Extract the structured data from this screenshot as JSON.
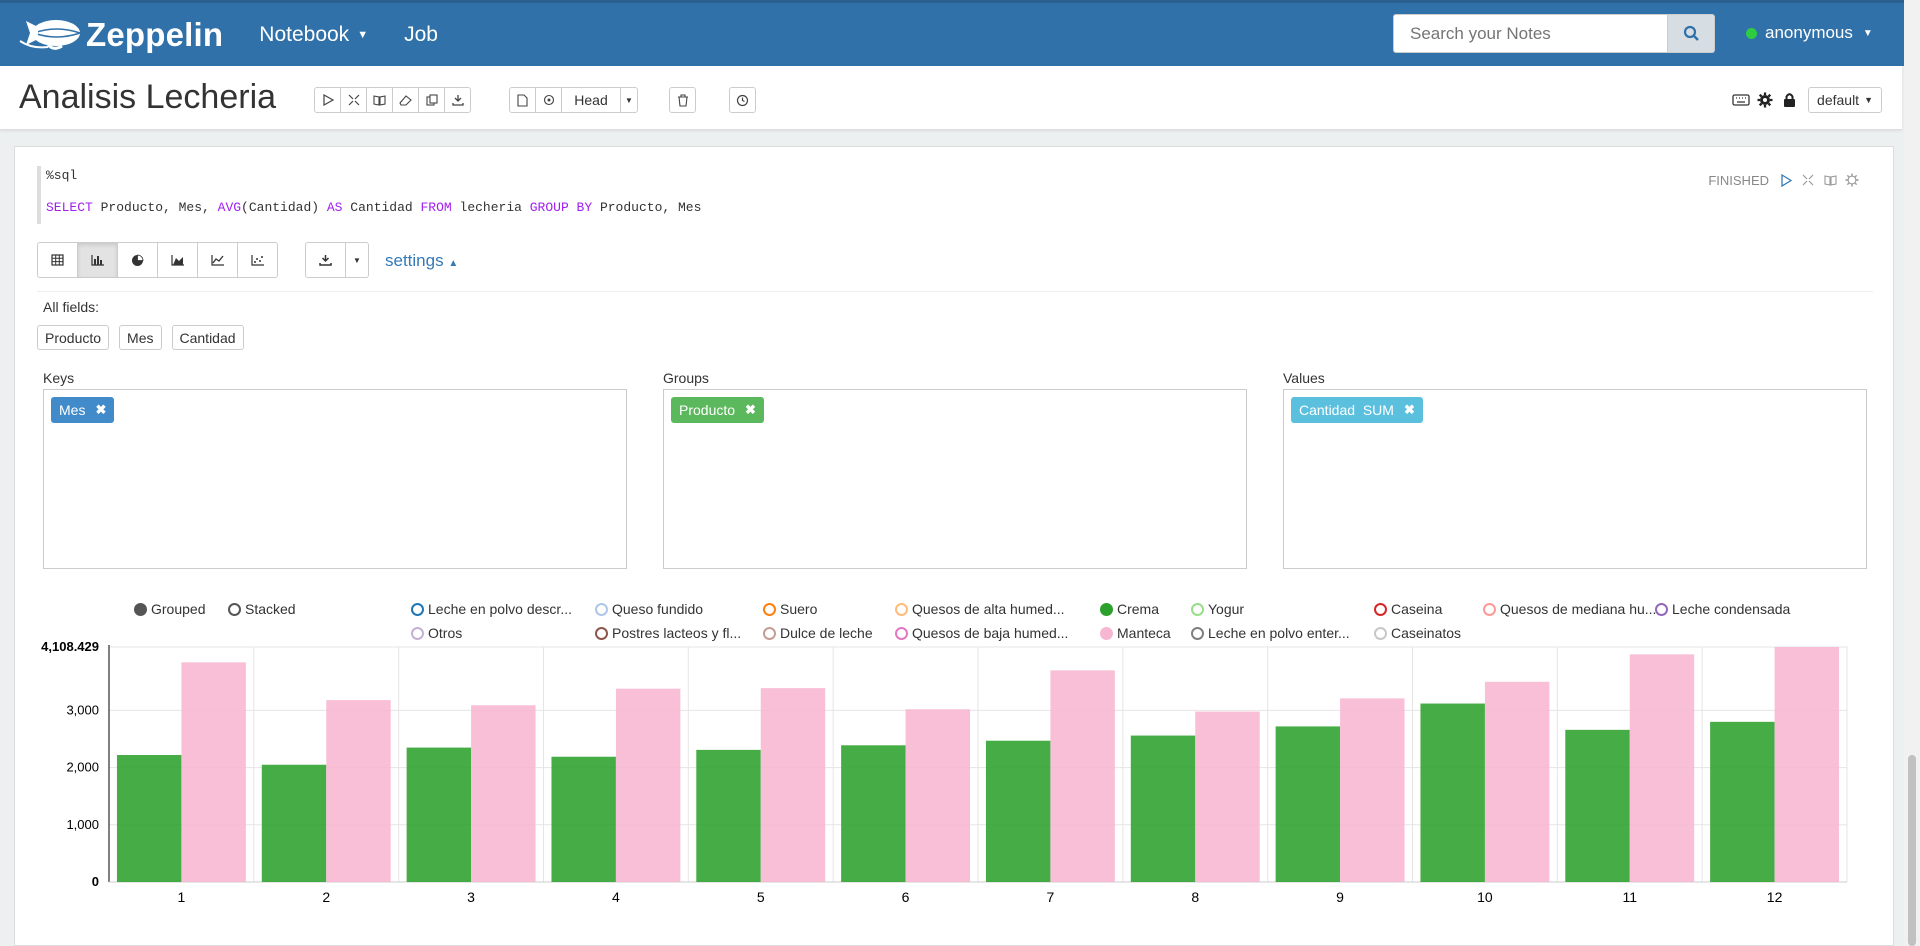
{
  "navbar": {
    "brand": "Zeppelin",
    "menu": [
      {
        "label": "Notebook",
        "has_caret": true
      },
      {
        "label": "Job",
        "has_caret": false
      }
    ],
    "search_placeholder": "Search your Notes",
    "user": "anonymous",
    "user_status_color": "#2ecc40"
  },
  "note": {
    "title": "Analisis Lecheria",
    "head_label": "Head",
    "interpreter_binding": "default"
  },
  "paragraph": {
    "interpreter": "%sql",
    "code_tokens": [
      {
        "t": "SELECT",
        "kw": true
      },
      {
        "t": " Producto, Mes, ",
        "kw": false
      },
      {
        "t": "AVG",
        "kw": true
      },
      {
        "t": "(Cantidad) ",
        "kw": false
      },
      {
        "t": "AS",
        "kw": true
      },
      {
        "t": " Cantidad ",
        "kw": false
      },
      {
        "t": "FROM",
        "kw": true
      },
      {
        "t": " lecheria ",
        "kw": false
      },
      {
        "t": "GROUP BY",
        "kw": true
      },
      {
        "t": " Producto, Mes",
        "kw": false
      }
    ],
    "status": "FINISHED",
    "settings_label": "settings",
    "all_fields_label": "All fields:",
    "fields": [
      "Producto",
      "Mes",
      "Cantidad"
    ],
    "keys_label": "Keys",
    "groups_label": "Groups",
    "values_label": "Values",
    "key_tag": "Mes",
    "group_tag": "Producto",
    "value_tag": "Cantidad  SUM"
  },
  "legend": {
    "modes": [
      {
        "label": "Grouped",
        "active": true
      },
      {
        "label": "Stacked",
        "active": false
      }
    ],
    "items": [
      {
        "label": "Leche en polvo descr...",
        "color": "#1f77b4",
        "filled": false
      },
      {
        "label": "Queso fundido",
        "color": "#aec7e8",
        "filled": false
      },
      {
        "label": "Suero",
        "color": "#ff7f0e",
        "filled": false
      },
      {
        "label": "Quesos de alta humed...",
        "color": "#ffbb78",
        "filled": false
      },
      {
        "label": "Crema",
        "color": "#2ca02c",
        "filled": true
      },
      {
        "label": "Yogur",
        "color": "#98df8a",
        "filled": false
      },
      {
        "label": "Caseina",
        "color": "#d62728",
        "filled": false
      },
      {
        "label": "Quesos de mediana hu...",
        "color": "#ff9896",
        "filled": false
      },
      {
        "label": "Leche condensada",
        "color": "#9467bd",
        "filled": false
      },
      {
        "label": "Otros",
        "color": "#c5b0d5",
        "filled": false
      },
      {
        "label": "Postres lacteos y fl...",
        "color": "#8c564b",
        "filled": false
      },
      {
        "label": "Dulce de leche",
        "color": "#c49c94",
        "filled": false
      },
      {
        "label": "Quesos de baja humed...",
        "color": "#e377c2",
        "filled": false
      },
      {
        "label": "Manteca",
        "color": "#f7b6d2",
        "filled": true
      },
      {
        "label": "Leche en polvo enter...",
        "color": "#7f7f7f",
        "filled": false
      },
      {
        "label": "Caseinatos",
        "color": "#c7c7c7",
        "filled": false
      }
    ]
  },
  "chart_data": {
    "type": "bar",
    "categories": [
      "1",
      "2",
      "3",
      "4",
      "5",
      "6",
      "7",
      "8",
      "9",
      "10",
      "11",
      "12"
    ],
    "series": [
      {
        "name": "Crema",
        "color": "#2ca02c",
        "values": [
          2220,
          2050,
          2350,
          2190,
          2310,
          2390,
          2470,
          2560,
          2720,
          3120,
          2660,
          2800
        ]
      },
      {
        "name": "Manteca",
        "color": "#f7b6d2",
        "values": [
          3840,
          3180,
          3090,
          3380,
          3390,
          3020,
          3700,
          2980,
          3210,
          3500,
          3980,
          4108.429
        ]
      }
    ],
    "ylim": [
      0,
      4108.429
    ],
    "yticks": [
      "0",
      "1,000",
      "2,000",
      "3,000",
      "4,108.429"
    ],
    "grid": true
  }
}
